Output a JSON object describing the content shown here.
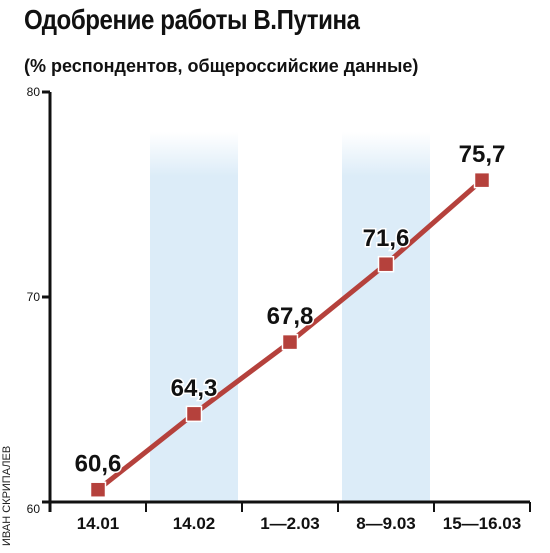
{
  "title": "Одобрение работы В.Путина",
  "subtitle": "(% респондентов, общероссийские данные)",
  "credit": "ИВАН СКРИПАЛЕВ",
  "colors": {
    "line": "#b5413c",
    "marker": "#b5413c",
    "band": "#dcecf8",
    "axis": "#111111"
  },
  "chart_data": {
    "type": "line",
    "categories": [
      "14.01",
      "14.02",
      "1—2.03",
      "8—9.03",
      "15—16.03"
    ],
    "series": [
      {
        "values": [
          60.6,
          64.3,
          67.8,
          71.6,
          75.7
        ]
      }
    ],
    "data_labels": [
      "60,6",
      "64,3",
      "67,8",
      "71,6",
      "75,7"
    ],
    "yticks": [
      "60",
      "70",
      "80"
    ],
    "ylim": [
      60,
      80
    ],
    "grid": false,
    "title": "Одобрение работы В.Путина",
    "subtitle": "(% респондентов, общероссийские данные)"
  }
}
